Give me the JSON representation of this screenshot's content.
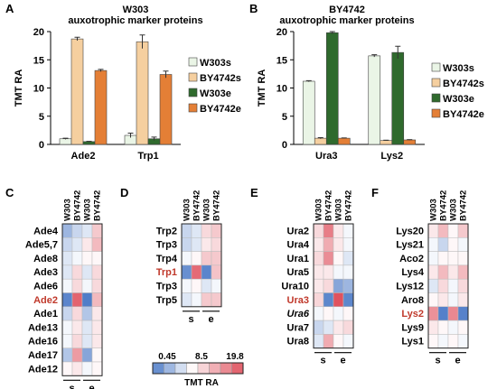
{
  "colors": {
    "s_a": "#eaf5e6",
    "s_b": "#f5cf9f",
    "e_a": "#2f6a2d",
    "e_b": "#e47f36",
    "heat_low": "#4f7cc8",
    "heat_mid": "#ffffff",
    "heat_high": "#e0525f",
    "highlight_label": "#c0392b"
  },
  "panels": {
    "A": {
      "letter": "A",
      "strain": "W303",
      "subtitle": "auxotrophic marker proteins"
    },
    "B": {
      "letter": "B",
      "strain": "BY4742",
      "subtitle": "auxotrophic marker proteins"
    },
    "C": {
      "letter": "C"
    },
    "D": {
      "letter": "D"
    },
    "E": {
      "letter": "E"
    },
    "F": {
      "letter": "F"
    }
  },
  "heatmap_common": {
    "column_labels": [
      "W303",
      "BY4742",
      "W303",
      "BY4742"
    ],
    "group_labels": [
      "s",
      "e"
    ]
  },
  "colorbar": {
    "tick_labels": [
      "0.45",
      "8.5",
      "19.8"
    ],
    "label": "TMT RA"
  },
  "chart_data": [
    {
      "id": "A",
      "type": "bar",
      "ylabel": "TMT RA",
      "ylim": [
        0,
        20
      ],
      "yticks": [
        "0",
        "5",
        "10",
        "15",
        "20"
      ],
      "categories": [
        "Ade2",
        "Trp1"
      ],
      "series": [
        {
          "name": "W303s",
          "values": [
            1.0,
            1.6
          ],
          "errors": [
            0.1,
            0.4
          ]
        },
        {
          "name": "BY4742s",
          "values": [
            18.7,
            18.2
          ],
          "errors": [
            0.3,
            1.2
          ]
        },
        {
          "name": "W303e",
          "values": [
            0.5,
            1.0
          ],
          "errors": [
            0.05,
            0.3
          ]
        },
        {
          "name": "BY4742e",
          "values": [
            13.1,
            12.4
          ],
          "errors": [
            0.2,
            0.6
          ]
        }
      ],
      "legend": "right"
    },
    {
      "id": "B",
      "type": "bar",
      "ylabel": "TMT RA",
      "ylim": [
        0,
        20
      ],
      "yticks": [
        "0",
        "5",
        "10",
        "15",
        "20"
      ],
      "categories": [
        "Ura3",
        "Lys2"
      ],
      "series": [
        {
          "name": "W303s",
          "values": [
            11.2,
            15.7
          ],
          "errors": [
            0.1,
            0.2
          ]
        },
        {
          "name": "BY4742s",
          "values": [
            1.1,
            0.7
          ],
          "errors": [
            0.1,
            0.05
          ]
        },
        {
          "name": "W303e",
          "values": [
            19.8,
            16.3
          ],
          "errors": [
            0.2,
            1.1
          ]
        },
        {
          "name": "BY4742e",
          "values": [
            1.1,
            0.8
          ],
          "errors": [
            0.05,
            0.05
          ]
        }
      ],
      "legend": "right"
    },
    {
      "id": "C",
      "type": "heatmap",
      "rows": [
        "Ade4",
        "Ade5,7",
        "Ade8",
        "Ade3",
        "Ade6",
        "Ade2",
        "Ade1",
        "Ade13",
        "Ade16",
        "Ade17",
        "Ade12"
      ],
      "highlight_row": "Ade2",
      "values": [
        [
          4,
          6,
          7,
          12
        ],
        [
          6,
          7,
          10,
          13
        ],
        [
          7,
          8,
          9,
          9
        ],
        [
          7,
          11,
          7,
          11
        ],
        [
          8,
          11,
          8,
          11
        ],
        [
          1,
          18.7,
          0.5,
          13.1
        ],
        [
          6,
          11,
          5,
          10
        ],
        [
          8,
          10,
          7,
          10
        ],
        [
          8,
          11,
          7,
          10
        ],
        [
          5,
          15,
          3,
          9
        ],
        [
          9,
          10,
          8,
          9
        ]
      ]
    },
    {
      "id": "D",
      "type": "heatmap",
      "rows": [
        "Trp2",
        "Trp3",
        "Trp4",
        "Trp1",
        "Trp3",
        "Trp5"
      ],
      "highlight_row": "Trp1",
      "values": [
        [
          6,
          7,
          11,
          12
        ],
        [
          6,
          7,
          10,
          11
        ],
        [
          8,
          9,
          12,
          12
        ],
        [
          1.6,
          18.2,
          1.0,
          12.4
        ],
        [
          8,
          9,
          7,
          8
        ],
        [
          7,
          8,
          12,
          12
        ]
      ]
    },
    {
      "id": "E",
      "type": "heatmap",
      "rows": [
        "Ura2",
        "Ura4",
        "Ura1",
        "Ura5",
        "Ura10",
        "Ura3",
        "Ura6",
        "Ura7",
        "Ura8"
      ],
      "highlight_row": "Ura3",
      "italic_row": "Ura6",
      "values": [
        [
          11,
          17,
          10,
          8
        ],
        [
          10,
          14,
          10,
          8
        ],
        [
          11,
          16,
          9,
          7
        ],
        [
          10,
          10,
          8,
          8
        ],
        [
          10,
          11,
          3,
          4
        ],
        [
          11.2,
          1.1,
          19.8,
          1.1
        ],
        [
          8,
          9,
          8,
          9
        ],
        [
          6,
          7,
          10,
          11
        ],
        [
          7,
          14,
          9,
          8
        ]
      ]
    },
    {
      "id": "F",
      "type": "heatmap",
      "rows": [
        "Lys20",
        "Lys21",
        "Aco2",
        "Lys4",
        "Lys12",
        "Aro8",
        "Lys2",
        "Lys9",
        "Lys1"
      ],
      "highlight_row": "Lys2",
      "values": [
        [
          10,
          13,
          9,
          12
        ],
        [
          8,
          6,
          9,
          8
        ],
        [
          8,
          9,
          9,
          9
        ],
        [
          10,
          13,
          10,
          13
        ],
        [
          7,
          11,
          8,
          11
        ],
        [
          9,
          10,
          8,
          10
        ],
        [
          15.7,
          0.7,
          16.3,
          0.8
        ],
        [
          10,
          9,
          8,
          9
        ],
        [
          9,
          8,
          9,
          8
        ]
      ]
    }
  ]
}
